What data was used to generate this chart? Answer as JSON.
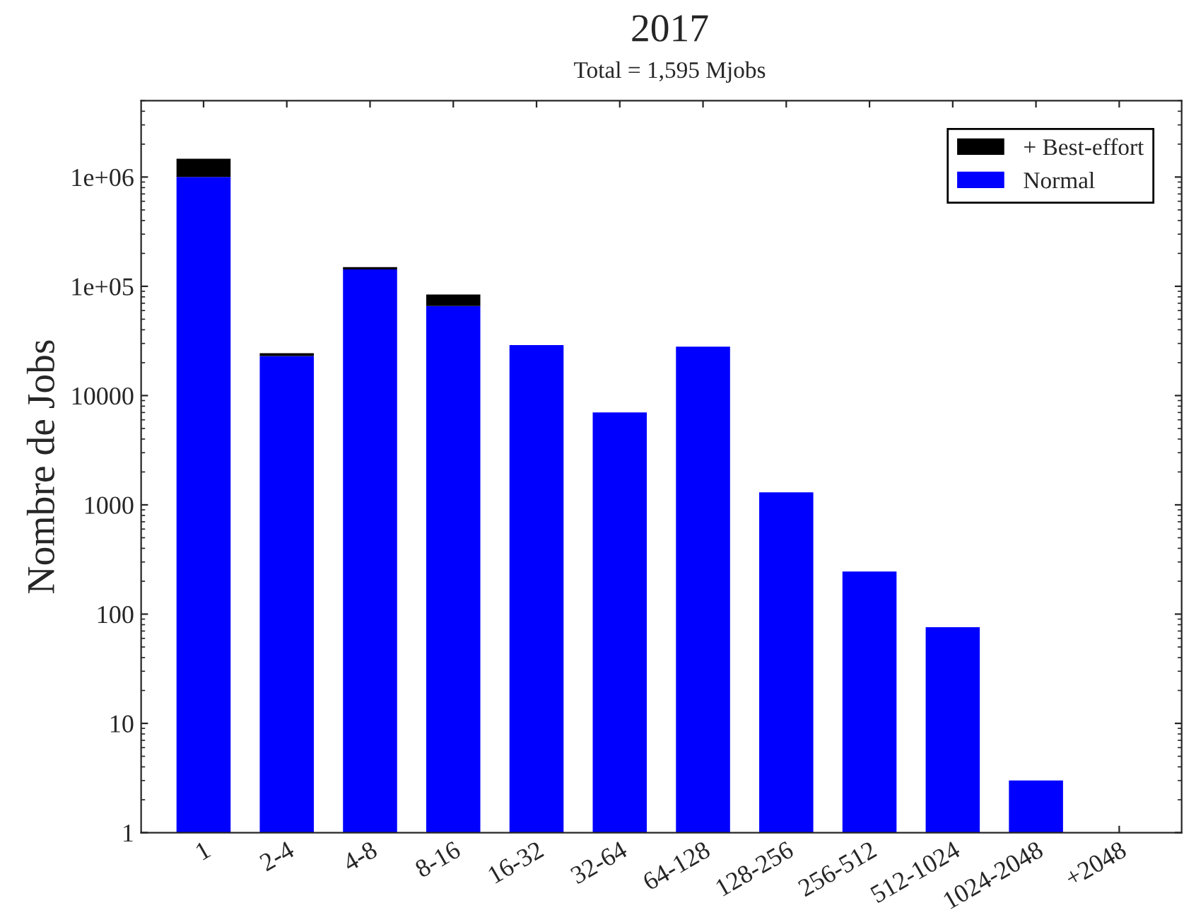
{
  "chart_data": {
    "type": "bar",
    "title": "2017",
    "subtitle": "Total = 1,595 Mjobs",
    "ylabel": "Nombre de Jobs",
    "categories": [
      "1",
      "2-4",
      "4-8",
      "8-16",
      "16-32",
      "32-64",
      "64-128",
      "128-256",
      "256-512",
      "512-1024",
      "1024-2048",
      "+2048"
    ],
    "series": [
      {
        "name": "Normal",
        "color": "#0000ff",
        "values": [
          1000000,
          23000,
          143000,
          66000,
          29000,
          7000,
          28000,
          1300,
          245,
          76,
          3,
          null
        ]
      },
      {
        "name": "+ Best-effort",
        "color": "#000000",
        "values": [
          470000,
          1400,
          7000,
          18000,
          null,
          null,
          null,
          null,
          null,
          null,
          null,
          null
        ]
      }
    ],
    "stacked": true,
    "log": true,
    "ylim": [
      1,
      5000000
    ],
    "yticks": [
      1,
      10,
      100,
      1000,
      10000,
      {
        "value": 100000,
        "label": "1e+05"
      },
      {
        "value": 1000000,
        "label": "1e+06"
      }
    ],
    "legend": "top right",
    "grid": false
  }
}
